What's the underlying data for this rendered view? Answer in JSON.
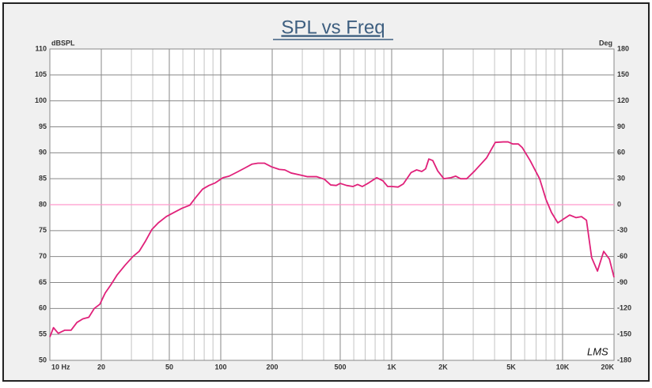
{
  "chart_data": {
    "type": "line",
    "title": "SPL vs Freq",
    "ylabel": "dBSPL",
    "y2label": "Deg",
    "annotation": "LMS",
    "xscale": "log",
    "grid": true,
    "color": "#e0217a",
    "y2_zero_color": "#ff99cc",
    "x": [
      10,
      10.5,
      11.2,
      12.2,
      13.3,
      14.4,
      15.6,
      16.9,
      18.2,
      19.6,
      21.1,
      22.7,
      24.8,
      27.5,
      30.6,
      33.3,
      36.3,
      39.5,
      43.1,
      48,
      53.3,
      59.3,
      65.9,
      71.8,
      78.3,
      85.3,
      92.9,
      103,
      112,
      125,
      139,
      152,
      165,
      180,
      198,
      220,
      237,
      258,
      294,
      320,
      363,
      404,
      440,
      474,
      500,
      545,
      593,
      632,
      674,
      734,
      817,
      889,
      948,
      1000,
      1090,
      1170,
      1300,
      1400,
      1500,
      1580,
      1650,
      1740,
      1860,
      2020,
      2220,
      2370,
      2530,
      2750,
      3060,
      3590,
      4040,
      4500,
      4800,
      5110,
      5510,
      5810,
      6460,
      7340,
      8000,
      8610,
      9380,
      10100,
      11000,
      12000,
      12900,
      13800,
      14800,
      16000,
      17400,
      18800,
      20000
    ],
    "values": [
      54.5,
      56.3,
      55.2,
      55.8,
      55.8,
      57.3,
      58,
      58.3,
      60,
      60.8,
      63,
      64.5,
      66.5,
      68.3,
      70,
      71,
      73,
      75.2,
      76.5,
      77.7,
      78.5,
      79.3,
      79.9,
      81.5,
      83,
      83.7,
      84.2,
      85.2,
      85.5,
      86.3,
      87.1,
      87.8,
      88,
      88,
      87.3,
      86.8,
      86.7,
      86.1,
      85.7,
      85.4,
      85.4,
      84.9,
      83.8,
      83.7,
      84.1,
      83.7,
      83.5,
      83.9,
      83.5,
      84.2,
      85.2,
      84.6,
      83.5,
      83.5,
      83.4,
      84,
      86.2,
      86.7,
      86.4,
      86.9,
      88.8,
      88.5,
      86.5,
      85,
      85.2,
      85.5,
      85,
      85,
      86.5,
      89,
      92,
      92.1,
      92.1,
      91.7,
      91.7,
      91,
      88.5,
      85,
      81,
      78.5,
      76.5,
      77.2,
      78,
      77.5,
      77.7,
      77,
      69.8,
      67.2,
      71,
      69.5,
      66
    ],
    "xlim": [
      10,
      20000
    ],
    "xticks": [
      {
        "value": 10,
        "label": "10  Hz"
      },
      20,
      50,
      100,
      200,
      500,
      {
        "value": 1000,
        "label": "1K"
      },
      {
        "value": 2000,
        "label": "2K"
      },
      {
        "value": 5000,
        "label": "5K"
      },
      {
        "value": 10000,
        "label": "10K"
      },
      {
        "value": 20000,
        "label": "20K"
      }
    ],
    "xminorticks": [
      30,
      40,
      60,
      70,
      80,
      90,
      300,
      400,
      600,
      700,
      800,
      900,
      3000,
      4000,
      6000,
      7000,
      8000,
      9000
    ],
    "ylim": [
      50,
      110
    ],
    "yticks": [
      50,
      55,
      60,
      65,
      70,
      75,
      80,
      85,
      90,
      95,
      100,
      105,
      110
    ],
    "y2lim": [
      -180,
      180
    ],
    "y2ticks": [
      -180,
      -150,
      -120,
      -90,
      -60,
      -30,
      0,
      30,
      60,
      90,
      120,
      150,
      180
    ]
  }
}
